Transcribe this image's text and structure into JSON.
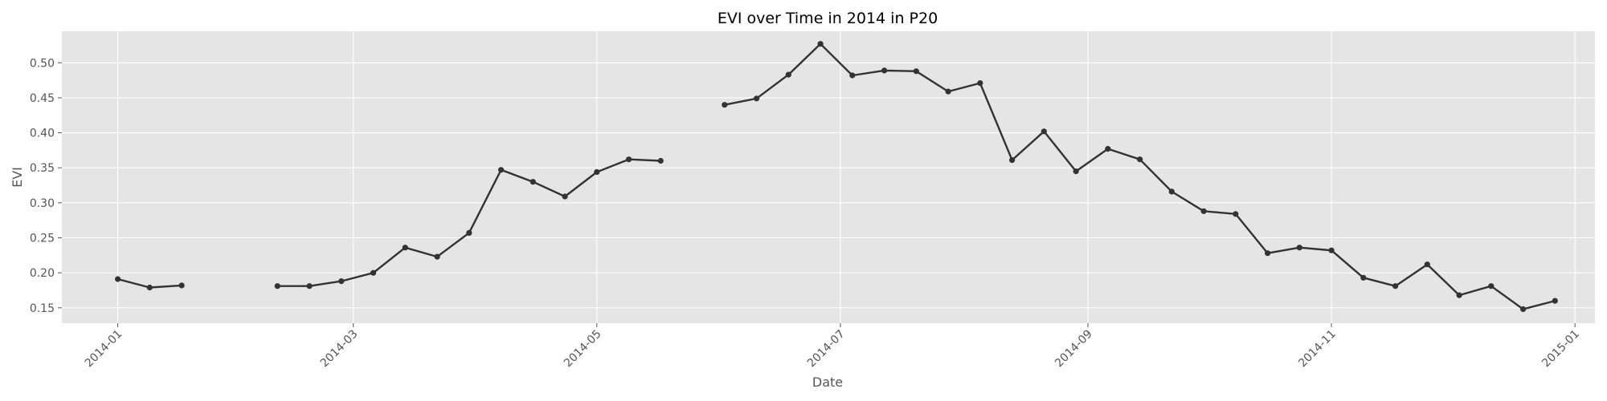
{
  "chart_data": {
    "type": "line",
    "title": "EVI over Time in 2014 in P20",
    "xlabel": "Date",
    "ylabel": "EVI",
    "x_ticks": [
      "2014-01",
      "2014-03",
      "2014-05",
      "2014-07",
      "2014-09",
      "2014-11",
      "2015-01"
    ],
    "y_ticks": [
      "0.15",
      "0.20",
      "0.25",
      "0.30",
      "0.35",
      "0.40",
      "0.45",
      "0.50"
    ],
    "xlim": [
      "2013-12-18",
      "2015-01-06"
    ],
    "ylim": [
      0.128,
      0.545
    ],
    "grid": true,
    "colors": {
      "background": "#e5e5e5",
      "line": "#333333",
      "grid": "#ffffff"
    },
    "series": [
      {
        "segments": [
          [
            {
              "x": "2014-01-01",
              "y": 0.191
            },
            {
              "x": "2014-01-09",
              "y": 0.179
            },
            {
              "x": "2014-01-17",
              "y": 0.182
            }
          ],
          [
            {
              "x": "2014-02-10",
              "y": 0.181
            },
            {
              "x": "2014-02-18",
              "y": 0.181
            },
            {
              "x": "2014-02-26",
              "y": 0.188
            },
            {
              "x": "2014-03-06",
              "y": 0.2
            },
            {
              "x": "2014-03-14",
              "y": 0.236
            },
            {
              "x": "2014-03-22",
              "y": 0.223
            },
            {
              "x": "2014-03-30",
              "y": 0.257
            },
            {
              "x": "2014-04-07",
              "y": 0.347
            },
            {
              "x": "2014-04-15",
              "y": 0.33
            },
            {
              "x": "2014-04-23",
              "y": 0.309
            },
            {
              "x": "2014-05-01",
              "y": 0.344
            },
            {
              "x": "2014-05-09",
              "y": 0.362
            },
            {
              "x": "2014-05-17",
              "y": 0.36
            }
          ],
          [
            {
              "x": "2014-06-02",
              "y": 0.44
            },
            {
              "x": "2014-06-10",
              "y": 0.449
            },
            {
              "x": "2014-06-18",
              "y": 0.483
            },
            {
              "x": "2014-06-26",
              "y": 0.527
            },
            {
              "x": "2014-07-04",
              "y": 0.482
            },
            {
              "x": "2014-07-12",
              "y": 0.489
            },
            {
              "x": "2014-07-20",
              "y": 0.488
            },
            {
              "x": "2014-07-28",
              "y": 0.459
            },
            {
              "x": "2014-08-05",
              "y": 0.471
            },
            {
              "x": "2014-08-13",
              "y": 0.361
            },
            {
              "x": "2014-08-21",
              "y": 0.402
            },
            {
              "x": "2014-08-29",
              "y": 0.345
            },
            {
              "x": "2014-09-06",
              "y": 0.377
            },
            {
              "x": "2014-09-14",
              "y": 0.362
            },
            {
              "x": "2014-09-22",
              "y": 0.316
            },
            {
              "x": "2014-09-30",
              "y": 0.288
            },
            {
              "x": "2014-10-08",
              "y": 0.284
            },
            {
              "x": "2014-10-16",
              "y": 0.228
            },
            {
              "x": "2014-10-24",
              "y": 0.236
            },
            {
              "x": "2014-11-01",
              "y": 0.232
            },
            {
              "x": "2014-11-09",
              "y": 0.193
            },
            {
              "x": "2014-11-17",
              "y": 0.181
            },
            {
              "x": "2014-11-25",
              "y": 0.212
            },
            {
              "x": "2014-12-03",
              "y": 0.168
            },
            {
              "x": "2014-12-11",
              "y": 0.181
            },
            {
              "x": "2014-12-19",
              "y": 0.148
            },
            {
              "x": "2014-12-27",
              "y": 0.16
            }
          ]
        ]
      }
    ]
  }
}
